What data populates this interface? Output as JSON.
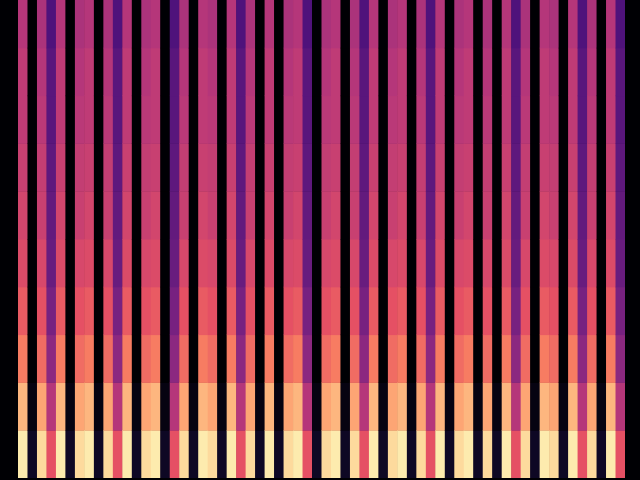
{
  "chart_data": {
    "type": "heatmap",
    "tick_labels": false,
    "xlim": [
      -0.5,
      63.5
    ],
    "ylim": [
      -0.5,
      9.5
    ],
    "zlim": [
      -80,
      0
    ],
    "cells": [
      [
        -3,
        -12,
        -22,
        -28,
        -32,
        -34,
        -36,
        -38,
        -38,
        -40
      ],
      [
        -75,
        -78,
        -80,
        -80,
        -80,
        -80,
        -80,
        -80,
        -80,
        -80
      ],
      [
        -6,
        -15,
        -25,
        -30,
        -33,
        -36,
        -37,
        -39,
        -40,
        -42
      ],
      [
        -30,
        -40,
        -48,
        -52,
        -55,
        -56,
        -57,
        -58,
        -58,
        -60
      ],
      [
        -3,
        -12,
        -22,
        -28,
        -32,
        -34,
        -36,
        -38,
        -38,
        -40
      ],
      [
        -75,
        -78,
        -80,
        -80,
        -80,
        -80,
        -80,
        -80,
        -80,
        -80
      ],
      [
        -6,
        -15,
        -25,
        -30,
        -33,
        -36,
        -37,
        -39,
        -40,
        -42
      ],
      [
        -3,
        -12,
        -22,
        -28,
        -32,
        -34,
        -36,
        -38,
        -38,
        -40
      ],
      [
        -75,
        -78,
        -80,
        -80,
        -80,
        -80,
        -80,
        -80,
        -80,
        -80
      ],
      [
        -6,
        -15,
        -25,
        -30,
        -33,
        -36,
        -37,
        -39,
        -40,
        -42
      ],
      [
        -30,
        -40,
        -48,
        -52,
        -55,
        -56,
        -57,
        -58,
        -58,
        -60
      ],
      [
        -3,
        -12,
        -22,
        -28,
        -32,
        -34,
        -36,
        -38,
        -38,
        -40
      ],
      [
        -75,
        -78,
        -80,
        -80,
        -80,
        -80,
        -80,
        -80,
        -80,
        -80
      ],
      [
        -6,
        -15,
        -25,
        -30,
        -33,
        -36,
        -37,
        -39,
        -40,
        -42
      ],
      [
        -3,
        -12,
        -22,
        -28,
        -32,
        -34,
        -36,
        -38,
        -38,
        -40
      ],
      [
        -75,
        -78,
        -80,
        -80,
        -80,
        -80,
        -80,
        -80,
        -80,
        -80
      ],
      [
        -30,
        -40,
        -48,
        -52,
        -55,
        -56,
        -57,
        -58,
        -58,
        -60
      ],
      [
        -6,
        -15,
        -25,
        -30,
        -33,
        -36,
        -37,
        -39,
        -40,
        -42
      ],
      [
        -75,
        -78,
        -80,
        -80,
        -80,
        -80,
        -80,
        -80,
        -80,
        -80
      ],
      [
        -3,
        -12,
        -22,
        -28,
        -32,
        -34,
        -36,
        -38,
        -38,
        -40
      ],
      [
        -6,
        -15,
        -25,
        -30,
        -33,
        -36,
        -37,
        -39,
        -40,
        -42
      ],
      [
        -75,
        -78,
        -80,
        -80,
        -80,
        -80,
        -80,
        -80,
        -80,
        -80
      ],
      [
        -3,
        -12,
        -22,
        -28,
        -32,
        -34,
        -36,
        -38,
        -38,
        -40
      ],
      [
        -30,
        -40,
        -48,
        -52,
        -55,
        -56,
        -57,
        -58,
        -58,
        -60
      ],
      [
        -6,
        -15,
        -25,
        -30,
        -33,
        -36,
        -37,
        -39,
        -40,
        -42
      ],
      [
        -75,
        -78,
        -80,
        -80,
        -80,
        -80,
        -80,
        -80,
        -80,
        -80
      ],
      [
        -3,
        -12,
        -22,
        -28,
        -32,
        -34,
        -36,
        -38,
        -38,
        -40
      ],
      [
        -75,
        -78,
        -80,
        -80,
        -80,
        -80,
        -80,
        -80,
        -80,
        -80
      ],
      [
        -6,
        -15,
        -25,
        -30,
        -33,
        -36,
        -37,
        -39,
        -40,
        -42
      ],
      [
        -3,
        -12,
        -22,
        -28,
        -32,
        -34,
        -36,
        -38,
        -38,
        -40
      ],
      [
        -30,
        -40,
        -48,
        -52,
        -55,
        -56,
        -57,
        -58,
        -58,
        -60
      ],
      [
        -75,
        -78,
        -80,
        -80,
        -80,
        -80,
        -80,
        -80,
        -80,
        -80
      ],
      [
        -6,
        -15,
        -25,
        -30,
        -33,
        -36,
        -37,
        -39,
        -40,
        -42
      ],
      [
        -3,
        -12,
        -22,
        -28,
        -32,
        -34,
        -36,
        -38,
        -38,
        -40
      ],
      [
        -75,
        -78,
        -80,
        -80,
        -80,
        -80,
        -80,
        -80,
        -80,
        -80
      ],
      [
        -6,
        -15,
        -25,
        -30,
        -33,
        -36,
        -37,
        -39,
        -40,
        -42
      ],
      [
        -30,
        -40,
        -48,
        -52,
        -55,
        -56,
        -57,
        -58,
        -58,
        -60
      ],
      [
        -3,
        -12,
        -22,
        -28,
        -32,
        -34,
        -36,
        -38,
        -38,
        -40
      ],
      [
        -75,
        -78,
        -80,
        -80,
        -80,
        -80,
        -80,
        -80,
        -80,
        -80
      ],
      [
        -6,
        -15,
        -25,
        -30,
        -33,
        -36,
        -37,
        -39,
        -40,
        -42
      ],
      [
        -3,
        -12,
        -22,
        -28,
        -32,
        -34,
        -36,
        -38,
        -38,
        -40
      ],
      [
        -75,
        -78,
        -80,
        -80,
        -80,
        -80,
        -80,
        -80,
        -80,
        -80
      ],
      [
        -6,
        -15,
        -25,
        -30,
        -33,
        -36,
        -37,
        -39,
        -40,
        -42
      ],
      [
        -30,
        -40,
        -48,
        -52,
        -55,
        -56,
        -57,
        -58,
        -58,
        -60
      ],
      [
        -3,
        -12,
        -22,
        -28,
        -32,
        -34,
        -36,
        -38,
        -38,
        -40
      ],
      [
        -75,
        -78,
        -80,
        -80,
        -80,
        -80,
        -80,
        -80,
        -80,
        -80
      ],
      [
        -6,
        -15,
        -25,
        -30,
        -33,
        -36,
        -37,
        -39,
        -40,
        -42
      ],
      [
        -3,
        -12,
        -22,
        -28,
        -32,
        -34,
        -36,
        -38,
        -38,
        -40
      ],
      [
        -75,
        -78,
        -80,
        -80,
        -80,
        -80,
        -80,
        -80,
        -80,
        -80
      ],
      [
        -6,
        -15,
        -25,
        -30,
        -33,
        -36,
        -37,
        -39,
        -40,
        -42
      ],
      [
        -75,
        -78,
        -80,
        -80,
        -80,
        -80,
        -80,
        -80,
        -80,
        -80
      ],
      [
        -3,
        -12,
        -22,
        -28,
        -32,
        -34,
        -36,
        -38,
        -38,
        -40
      ],
      [
        -30,
        -40,
        -48,
        -52,
        -55,
        -56,
        -57,
        -58,
        -58,
        -60
      ],
      [
        -6,
        -15,
        -25,
        -30,
        -33,
        -36,
        -37,
        -39,
        -40,
        -42
      ],
      [
        -75,
        -78,
        -80,
        -80,
        -80,
        -80,
        -80,
        -80,
        -80,
        -80
      ],
      [
        -3,
        -12,
        -22,
        -28,
        -32,
        -34,
        -36,
        -38,
        -38,
        -40
      ],
      [
        -6,
        -15,
        -25,
        -30,
        -33,
        -36,
        -37,
        -39,
        -40,
        -42
      ],
      [
        -75,
        -78,
        -80,
        -80,
        -80,
        -80,
        -80,
        -80,
        -80,
        -80
      ],
      [
        -3,
        -12,
        -22,
        -28,
        -32,
        -34,
        -36,
        -38,
        -38,
        -40
      ],
      [
        -30,
        -40,
        -48,
        -52,
        -55,
        -56,
        -57,
        -58,
        -58,
        -60
      ],
      [
        -6,
        -15,
        -25,
        -30,
        -33,
        -36,
        -37,
        -39,
        -40,
        -42
      ],
      [
        -75,
        -78,
        -80,
        -80,
        -80,
        -80,
        -80,
        -80,
        -80,
        -80
      ],
      [
        -3,
        -12,
        -22,
        -28,
        -32,
        -34,
        -36,
        -38,
        -38,
        -40
      ],
      [
        -30,
        -40,
        -48,
        -52,
        -55,
        -56,
        -57,
        -58,
        -58,
        -60
      ]
    ]
  }
}
